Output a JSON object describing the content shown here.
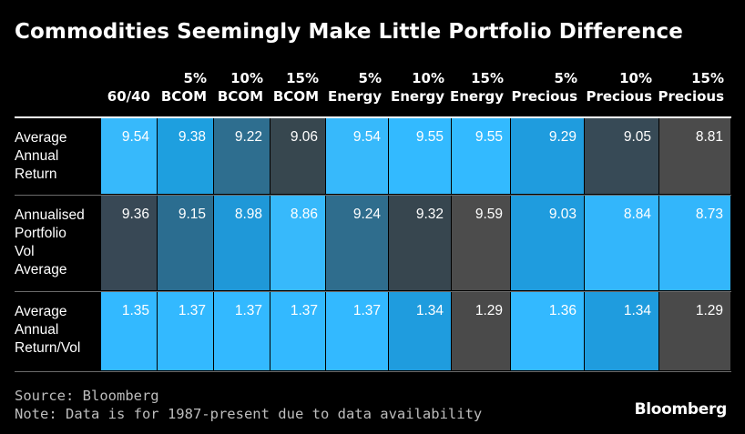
{
  "title": "Commodities Seemingly Make Little Portfolio Difference",
  "chart_data": {
    "type": "table",
    "columns": [
      [
        "",
        "60/40"
      ],
      [
        "5%",
        "BCOM"
      ],
      [
        "10%",
        "BCOM"
      ],
      [
        "15%",
        "BCOM"
      ],
      [
        "5%",
        "Energy"
      ],
      [
        "10%",
        "Energy"
      ],
      [
        "15%",
        "Energy"
      ],
      [
        "5%",
        "Precious"
      ],
      [
        "10%",
        "Precious"
      ],
      [
        "15%",
        "Precious"
      ]
    ],
    "rows": [
      {
        "label": [
          "Average",
          "Annual",
          "Return"
        ],
        "values": [
          "9.54",
          "9.38",
          "9.22",
          "9.06",
          "9.54",
          "9.55",
          "9.55",
          "9.29",
          "9.05",
          "8.81"
        ],
        "colors": [
          "#37b9fb",
          "#1e9fdf",
          "#2e6e8f",
          "#37474f",
          "#37b9fb",
          "#33baff",
          "#33baff",
          "#1f9cde",
          "#374a56",
          "#4b4b4b"
        ]
      },
      {
        "label": [
          "Annualised",
          "Portfolio",
          "Vol",
          "Average"
        ],
        "values": [
          "9.36",
          "9.15",
          "8.98",
          "8.86",
          "9.24",
          "9.32",
          "9.59",
          "9.03",
          "8.84",
          "8.73"
        ],
        "colors": [
          "#384855",
          "#2b6d90",
          "#1f98d8",
          "#37b9fb",
          "#2f6d8d",
          "#37464f",
          "#4c4c4c",
          "#1f9cde",
          "#33b6fb",
          "#33b6fb"
        ]
      },
      {
        "label": [
          "Average",
          "Annual",
          "Return/Vol"
        ],
        "values": [
          "1.35",
          "1.37",
          "1.37",
          "1.37",
          "1.37",
          "1.34",
          "1.29",
          "1.36",
          "1.34",
          "1.29"
        ],
        "colors": [
          "#33b9ff",
          "#33b9ff",
          "#33b9ff",
          "#33b9ff",
          "#33b9ff",
          "#1f9cde",
          "#4a4a4a",
          "#33b9ff",
          "#1f9cde",
          "#4a4a4a"
        ]
      }
    ]
  },
  "footer": {
    "source": "Source: Bloomberg",
    "note": "Note: Data is for 1987-present due to data availability"
  },
  "logo": "Bloomberg"
}
